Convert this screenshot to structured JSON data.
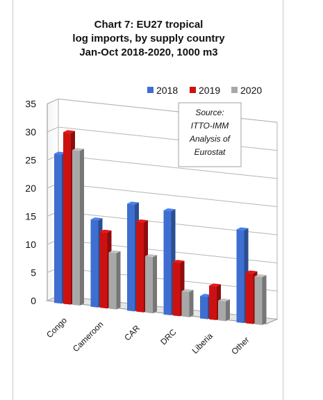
{
  "chart_data": {
    "type": "bar",
    "title_lines": [
      "Chart 7: EU27 tropical",
      "log imports, by supply country",
      "Jan-Oct 2018-2020, 1000 m3"
    ],
    "categories": [
      "Congo",
      "Cameroon",
      "CAR",
      "DRC",
      "Liberia",
      "Other"
    ],
    "series": [
      {
        "name": "2018",
        "color": "#3e6fd0",
        "values": [
          26.5,
          15.5,
          19.0,
          18.5,
          4.0,
          16.5
        ]
      },
      {
        "name": "2019",
        "color": "#cc1111",
        "values": [
          30.5,
          13.5,
          16.0,
          9.5,
          6.0,
          9.0
        ]
      },
      {
        "name": "2020",
        "color": "#a8a8a8",
        "values": [
          27.5,
          10.0,
          10.0,
          4.5,
          3.5,
          8.5
        ]
      }
    ],
    "yticks": [
      "0",
      "5",
      "10",
      "15",
      "20",
      "25",
      "30",
      "35"
    ],
    "ylim": [
      0,
      35
    ],
    "grid": true,
    "legend_position": "top-right",
    "annotation": [
      "Source:",
      "ITTO-IMM",
      "Analysis of",
      "Eurostat"
    ]
  }
}
